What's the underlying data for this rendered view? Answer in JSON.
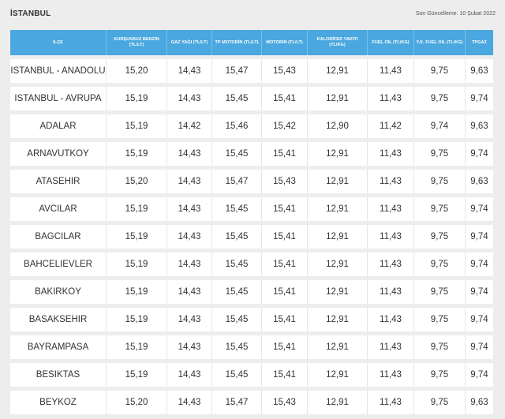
{
  "page": {
    "title": "İSTANBUL",
    "updated": "Son Güncelleme: 10 Şubat 2022"
  },
  "columns": [
    "İLÇE",
    "KURŞUNSUZ BENZİN (TL/LT)",
    "GAZ YAĞI (TL/LT)",
    "TP MOTORİN (TL/LT)",
    "MOTORİN (TL/LT)",
    "KALORİFER YAKITI (TL/KG)",
    "FUEL OIL (TL/KG)",
    "Y.K. FUEL OIL (TL/KG)",
    "TPGAZ"
  ],
  "rows": [
    [
      "ISTANBUL - ANADOLU",
      "15,20",
      "14,43",
      "15,47",
      "15,43",
      "12,91",
      "11,43",
      "9,75",
      "9,63"
    ],
    [
      "ISTANBUL - AVRUPA",
      "15,19",
      "14,43",
      "15,45",
      "15,41",
      "12,91",
      "11,43",
      "9,75",
      "9,74"
    ],
    [
      "ADALAR",
      "15,19",
      "14,42",
      "15,46",
      "15,42",
      "12,90",
      "11,42",
      "9,74",
      "9,63"
    ],
    [
      "ARNAVUTKOY",
      "15,19",
      "14,43",
      "15,45",
      "15,41",
      "12,91",
      "11,43",
      "9,75",
      "9,74"
    ],
    [
      "ATASEHIR",
      "15,20",
      "14,43",
      "15,47",
      "15,43",
      "12,91",
      "11,43",
      "9,75",
      "9,63"
    ],
    [
      "AVCILAR",
      "15,19",
      "14,43",
      "15,45",
      "15,41",
      "12,91",
      "11,43",
      "9,75",
      "9,74"
    ],
    [
      "BAGCILAR",
      "15,19",
      "14,43",
      "15,45",
      "15,41",
      "12,91",
      "11,43",
      "9,75",
      "9,74"
    ],
    [
      "BAHCELIEVLER",
      "15,19",
      "14,43",
      "15,45",
      "15,41",
      "12,91",
      "11,43",
      "9,75",
      "9,74"
    ],
    [
      "BAKIRKOY",
      "15,19",
      "14,43",
      "15,45",
      "15,41",
      "12,91",
      "11,43",
      "9,75",
      "9,74"
    ],
    [
      "BASAKSEHIR",
      "15,19",
      "14,43",
      "15,45",
      "15,41",
      "12,91",
      "11,43",
      "9,75",
      "9,74"
    ],
    [
      "BAYRAMPASA",
      "15,19",
      "14,43",
      "15,45",
      "15,41",
      "12,91",
      "11,43",
      "9,75",
      "9,74"
    ],
    [
      "BESIKTAS",
      "15,19",
      "14,43",
      "15,45",
      "15,41",
      "12,91",
      "11,43",
      "9,75",
      "9,74"
    ],
    [
      "BEYKOZ",
      "15,20",
      "14,43",
      "15,47",
      "15,43",
      "12,91",
      "11,43",
      "9,75",
      "9,63"
    ]
  ]
}
